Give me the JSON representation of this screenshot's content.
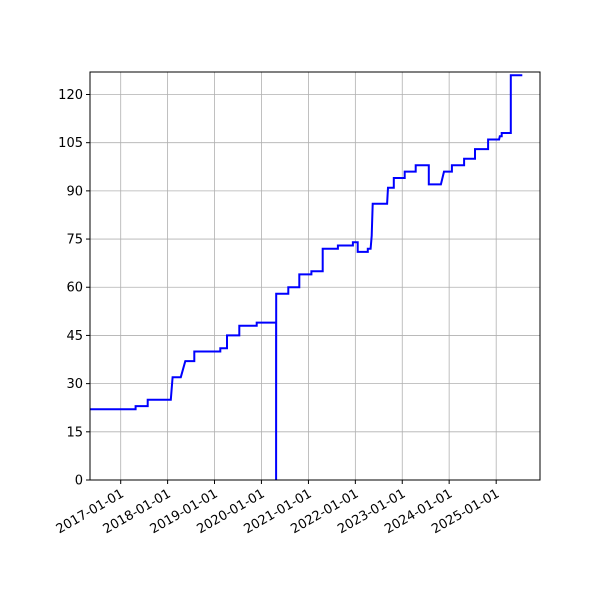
{
  "chart_data": {
    "type": "line",
    "title": "",
    "xlabel": "",
    "ylabel": "",
    "xlim": [
      "2016-05-07",
      "2025-12-08"
    ],
    "ylim": [
      0,
      127
    ],
    "grid": true,
    "line_color": "#0000ff",
    "x_ticks": [
      "2017-01-01",
      "2018-01-01",
      "2019-01-01",
      "2020-01-01",
      "2021-01-01",
      "2022-01-01",
      "2023-01-01",
      "2024-01-01",
      "2025-01-01"
    ],
    "y_ticks": [
      0,
      15,
      30,
      45,
      60,
      75,
      90,
      105,
      120
    ],
    "points": [
      [
        "2016-05-07",
        22
      ],
      [
        "2017-04-27",
        22
      ],
      [
        "2017-04-27",
        23
      ],
      [
        "2017-07-30",
        23
      ],
      [
        "2017-07-30",
        25
      ],
      [
        "2018-01-26",
        25
      ],
      [
        "2018-02-09",
        32
      ],
      [
        "2018-04-14",
        32
      ],
      [
        "2018-05-19",
        37
      ],
      [
        "2018-07-28",
        37
      ],
      [
        "2018-07-28",
        40
      ],
      [
        "2019-02-15",
        40
      ],
      [
        "2019-02-15",
        41
      ],
      [
        "2019-04-08",
        41
      ],
      [
        "2019-04-08",
        45
      ],
      [
        "2019-07-13",
        45
      ],
      [
        "2019-07-13",
        48
      ],
      [
        "2019-11-25",
        48
      ],
      [
        "2019-11-25",
        49
      ],
      [
        "2020-04-24",
        49
      ],
      [
        "2020-04-24",
        0
      ],
      [
        "2020-04-25",
        58
      ],
      [
        "2020-07-28",
        58
      ],
      [
        "2020-07-28",
        60
      ],
      [
        "2020-10-22",
        60
      ],
      [
        "2020-10-22",
        64
      ],
      [
        "2021-01-24",
        64
      ],
      [
        "2021-01-24",
        65
      ],
      [
        "2021-04-22",
        65
      ],
      [
        "2021-04-22",
        72
      ],
      [
        "2021-08-18",
        72
      ],
      [
        "2021-08-18",
        73
      ],
      [
        "2021-12-13",
        73
      ],
      [
        "2021-12-13",
        74
      ],
      [
        "2022-01-19",
        74
      ],
      [
        "2022-01-19",
        71
      ],
      [
        "2022-04-08",
        71
      ],
      [
        "2022-04-08",
        72
      ],
      [
        "2022-04-30",
        72
      ],
      [
        "2022-05-08",
        76
      ],
      [
        "2022-05-16",
        86
      ],
      [
        "2022-09-05",
        86
      ],
      [
        "2022-09-12",
        91
      ],
      [
        "2022-10-27",
        91
      ],
      [
        "2022-10-27",
        94
      ],
      [
        "2023-01-20",
        94
      ],
      [
        "2023-01-20",
        96
      ],
      [
        "2023-04-16",
        96
      ],
      [
        "2023-04-16",
        98
      ],
      [
        "2023-07-27",
        98
      ],
      [
        "2023-07-27",
        92
      ],
      [
        "2023-10-29",
        92
      ],
      [
        "2023-11-22",
        96
      ],
      [
        "2024-01-22",
        96
      ],
      [
        "2024-01-22",
        98
      ],
      [
        "2024-04-26",
        98
      ],
      [
        "2024-04-26",
        100
      ],
      [
        "2024-07-20",
        100
      ],
      [
        "2024-07-20",
        103
      ],
      [
        "2024-10-30",
        103
      ],
      [
        "2024-10-30",
        106
      ],
      [
        "2025-01-24",
        106
      ],
      [
        "2025-01-29",
        107
      ],
      [
        "2025-02-13",
        107
      ],
      [
        "2025-02-13",
        108
      ],
      [
        "2025-04-25",
        108
      ],
      [
        "2025-04-25",
        126
      ],
      [
        "2025-07-23",
        126
      ]
    ]
  }
}
